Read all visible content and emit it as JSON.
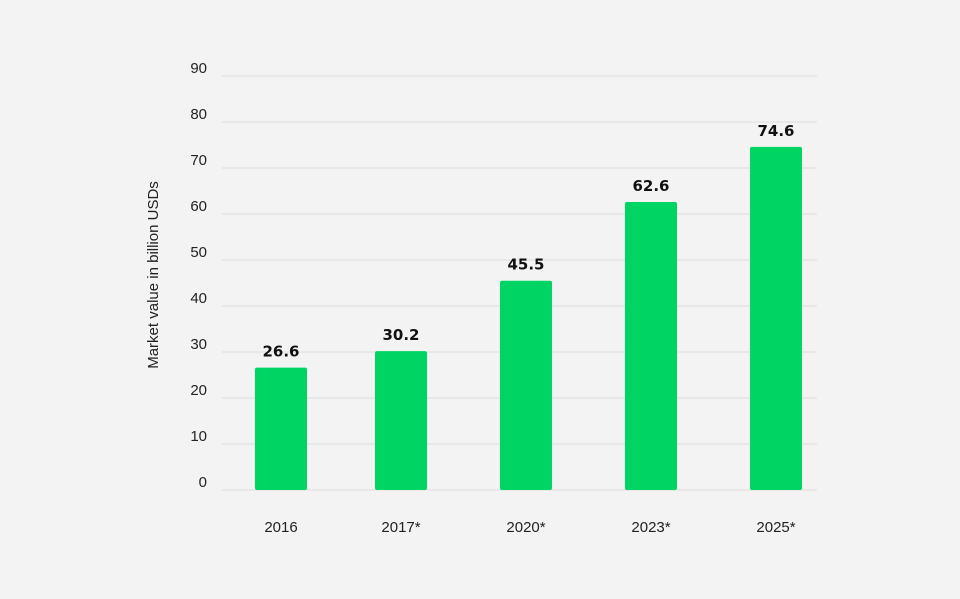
{
  "chart_data": {
    "type": "bar",
    "title": "",
    "xlabel": "",
    "ylabel": "Market value in billion USDs",
    "categories": [
      "2016",
      "2017*",
      "2020*",
      "2023*",
      "2025*"
    ],
    "values": [
      26.6,
      30.2,
      45.5,
      62.6,
      74.6
    ],
    "value_labels": [
      "26.6",
      "30.2",
      "45.5",
      "62.6",
      "74.6"
    ],
    "yticks": [
      0,
      10,
      20,
      30,
      40,
      50,
      60,
      70,
      80,
      90
    ],
    "ylim": [
      0,
      90
    ],
    "grid": true,
    "bar_color": "#00d563",
    "background_color": "#f3f3f3",
    "grid_color": "#dcdcdc"
  }
}
